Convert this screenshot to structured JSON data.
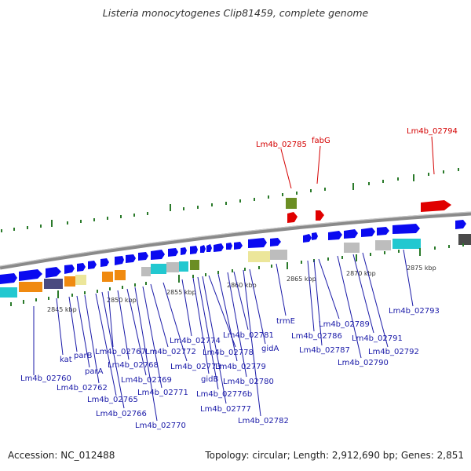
{
  "title": "Listeria monocytogenes Clip81459, complete genome",
  "footer": {
    "accession": "Accession: NC_012488",
    "stats": "Topology: circular; Length: 2,912,690 bp; Genes: 2,851"
  },
  "scale_ticks": [
    "2845 kbp",
    "2850 kbp",
    "2855 kbp",
    "2860 kbp",
    "2865 kbp",
    "2870 kbp",
    "2875 kbp"
  ],
  "gene_labels_top": [
    "Lm4b_02785",
    "fabG",
    "Lm4b_02794"
  ],
  "gene_labels_bottom": [
    "Lm4b_02760",
    "kat",
    "parB",
    "parA",
    "Lm4b_02762",
    "Lm4b_02765",
    "Lm4b_02766",
    "Lm4b_02767",
    "Lm4b_02768",
    "Lm4b_02769",
    "Lm4b_02770",
    "Lm4b_02771",
    "Lm4b_02772",
    "Lm4b_02773",
    "Lm4b_02774",
    "gidB",
    "Lm4b_02776b",
    "Lm4b_02777",
    "Lm4b_02778",
    "Lm4b_02779",
    "Lm4b_02780",
    "Lm4b_02781",
    "Lm4b_02782",
    "gidA",
    "trmE",
    "Lm4b_02786",
    "Lm4b_02787",
    "Lm4b_02789",
    "Lm4b_02790",
    "Lm4b_02791",
    "Lm4b_02792",
    "Lm4b_02793"
  ],
  "colors": {
    "backbone": "#8a8a8a",
    "forward_cds": "#0a0af0",
    "reverse_highlight": "#e00000",
    "olive": "#6b8e23",
    "cyan": "#22c8d0",
    "orange": "#f08a10",
    "khaki": "#ece69a",
    "grey": "#bdbdbd",
    "slate": "#4a4a80",
    "tick_green": "#2a7a2a",
    "label_blue": "#1a1aa8",
    "label_red": "#d40000"
  }
}
